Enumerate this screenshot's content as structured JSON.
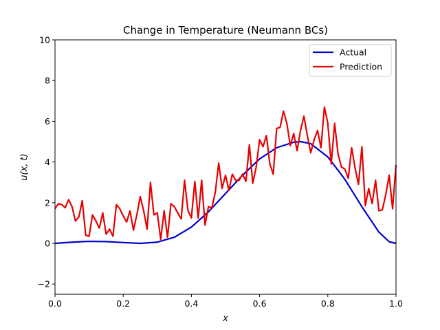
{
  "chart_data": {
    "type": "line",
    "title": "Change in Temperature (Neumann BCs)",
    "xlabel": "x",
    "ylabel": "u(x, t)",
    "xlim": [
      0,
      1
    ],
    "ylim": [
      -2.5,
      10
    ],
    "xticks": [
      0.0,
      0.2,
      0.4,
      0.6,
      0.8,
      1.0
    ],
    "xtick_labels": [
      "0.0",
      "0.2",
      "0.4",
      "0.6",
      "0.8",
      "1.0"
    ],
    "yticks": [
      -2,
      0,
      2,
      4,
      6,
      8,
      10
    ],
    "ytick_labels": [
      "−2",
      "0",
      "2",
      "4",
      "6",
      "8",
      "10"
    ],
    "grid": false,
    "legend_position": "top-right",
    "series": [
      {
        "name": "Actual",
        "color": "#0000cc",
        "x": [
          0.0,
          0.05,
          0.1,
          0.15,
          0.2,
          0.25,
          0.3,
          0.35,
          0.4,
          0.45,
          0.5,
          0.55,
          0.6,
          0.65,
          0.7,
          0.72,
          0.75,
          0.8,
          0.85,
          0.9,
          0.95,
          0.98,
          1.0
        ],
        "y": [
          0.0,
          0.06,
          0.1,
          0.09,
          0.04,
          0.0,
          0.06,
          0.3,
          0.8,
          1.55,
          2.45,
          3.35,
          4.15,
          4.7,
          4.97,
          5.0,
          4.9,
          4.25,
          3.15,
          1.8,
          0.55,
          0.08,
          0.0
        ]
      },
      {
        "name": "Prediction",
        "color": "#e60000",
        "x": [
          0.0,
          0.01,
          0.02,
          0.03,
          0.04,
          0.05,
          0.06,
          0.07,
          0.08,
          0.09,
          0.1,
          0.11,
          0.12,
          0.13,
          0.14,
          0.15,
          0.16,
          0.17,
          0.18,
          0.19,
          0.2,
          0.21,
          0.22,
          0.23,
          0.24,
          0.25,
          0.26,
          0.27,
          0.28,
          0.29,
          0.3,
          0.31,
          0.32,
          0.33,
          0.34,
          0.35,
          0.36,
          0.37,
          0.38,
          0.39,
          0.4,
          0.41,
          0.42,
          0.43,
          0.44,
          0.45,
          0.46,
          0.47,
          0.48,
          0.49,
          0.5,
          0.51,
          0.52,
          0.53,
          0.54,
          0.55,
          0.56,
          0.57,
          0.58,
          0.59,
          0.6,
          0.61,
          0.62,
          0.63,
          0.64,
          0.65,
          0.66,
          0.67,
          0.68,
          0.69,
          0.7,
          0.71,
          0.72,
          0.73,
          0.74,
          0.75,
          0.76,
          0.77,
          0.78,
          0.79,
          0.8,
          0.81,
          0.82,
          0.83,
          0.84,
          0.85,
          0.86,
          0.87,
          0.88,
          0.89,
          0.9,
          0.91,
          0.92,
          0.93,
          0.94,
          0.95,
          0.96,
          0.97,
          0.98,
          0.99,
          1.0
        ],
        "y": [
          1.7,
          1.95,
          1.9,
          1.75,
          2.15,
          1.8,
          1.1,
          1.3,
          2.1,
          0.4,
          0.35,
          1.4,
          1.1,
          0.75,
          1.5,
          0.45,
          0.7,
          0.35,
          1.9,
          1.7,
          1.35,
          1.05,
          1.6,
          0.65,
          1.4,
          2.3,
          1.6,
          0.7,
          3.0,
          1.4,
          1.5,
          0.2,
          1.6,
          0.3,
          1.95,
          1.8,
          1.5,
          1.2,
          3.1,
          1.6,
          1.25,
          3.05,
          1.25,
          3.1,
          0.9,
          1.8,
          1.75,
          2.5,
          3.95,
          2.7,
          3.35,
          2.6,
          3.4,
          3.1,
          3.1,
          3.4,
          3.05,
          4.85,
          2.95,
          3.75,
          5.1,
          4.75,
          5.3,
          3.9,
          3.4,
          5.65,
          5.7,
          6.5,
          5.9,
          4.8,
          5.4,
          4.55,
          5.55,
          6.25,
          5.3,
          4.45,
          5.1,
          5.55,
          4.7,
          6.7,
          5.9,
          3.9,
          5.9,
          4.4,
          3.75,
          3.65,
          3.2,
          4.7,
          3.7,
          2.9,
          4.75,
          1.85,
          2.7,
          1.95,
          3.1,
          1.6,
          1.65,
          2.4,
          3.35,
          1.7,
          3.85
        ]
      }
    ]
  }
}
